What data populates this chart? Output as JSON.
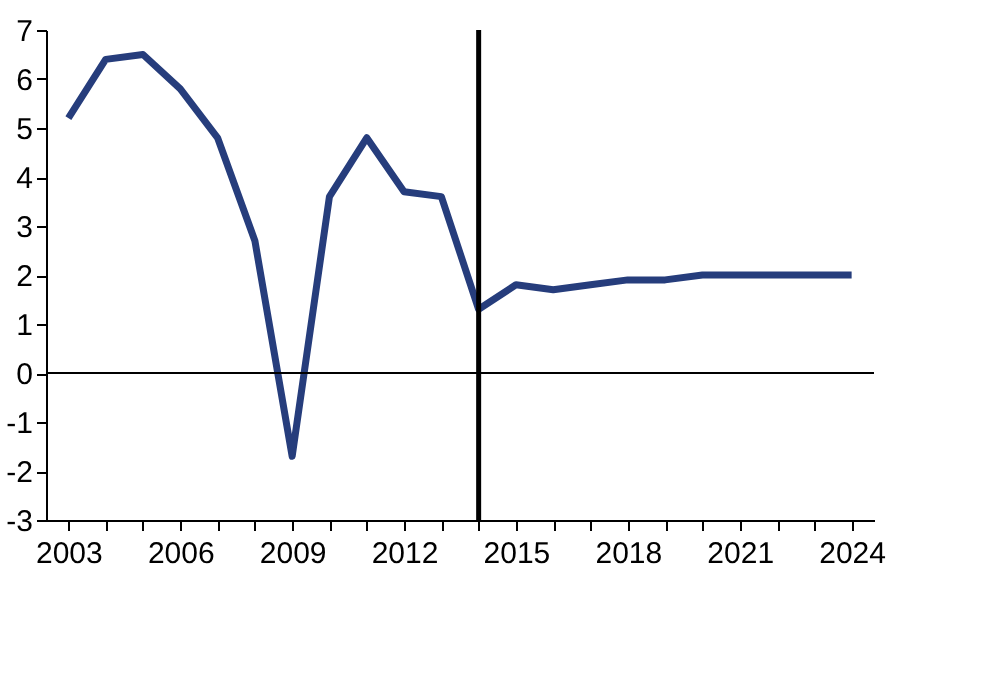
{
  "chart_data": {
    "type": "line",
    "x": [
      2003,
      2004,
      2005,
      2006,
      2007,
      2008,
      2009,
      2010,
      2011,
      2012,
      2013,
      2014,
      2015,
      2016,
      2017,
      2018,
      2019,
      2020,
      2021,
      2022,
      2023,
      2024
    ],
    "series": [
      {
        "color": "#263d7c",
        "values": [
          5.2,
          6.4,
          6.5,
          5.8,
          4.8,
          2.7,
          -1.7,
          3.6,
          4.8,
          3.7,
          3.6,
          1.3,
          1.8,
          1.7,
          1.8,
          1.9,
          1.9,
          2.0,
          2.0,
          2.0,
          2.0,
          2.0
        ]
      }
    ],
    "xlim": [
      2002.4,
      2024.6
    ],
    "xticks": [
      2003,
      {
        "value": 2004,
        "label": null
      },
      {
        "value": 2005,
        "label": null
      },
      2006,
      {
        "value": 2007,
        "label": null
      },
      {
        "value": 2008,
        "label": null
      },
      2009,
      {
        "value": 2010,
        "label": null
      },
      {
        "value": 2011,
        "label": null
      },
      2012,
      {
        "value": 2013,
        "label": null
      },
      {
        "value": 2014,
        "label": null
      },
      2015,
      {
        "value": 2016,
        "label": null
      },
      {
        "value": 2017,
        "label": null
      },
      2018,
      {
        "value": 2019,
        "label": null
      },
      {
        "value": 2020,
        "label": null
      },
      2021,
      {
        "value": 2022,
        "label": null
      },
      {
        "value": 2023,
        "label": null
      },
      2024
    ],
    "ylim": [
      -3,
      7
    ],
    "yticks": [
      -3,
      -2,
      -1,
      0,
      1,
      2,
      3,
      4,
      5,
      6,
      7
    ],
    "ref_lines": [
      {
        "axis": "y",
        "value": 0,
        "color": "#000000"
      },
      {
        "axis": "x",
        "value": 2014,
        "color": "#000000"
      }
    ],
    "grid": false,
    "marker": "none",
    "line_style": "solid"
  }
}
